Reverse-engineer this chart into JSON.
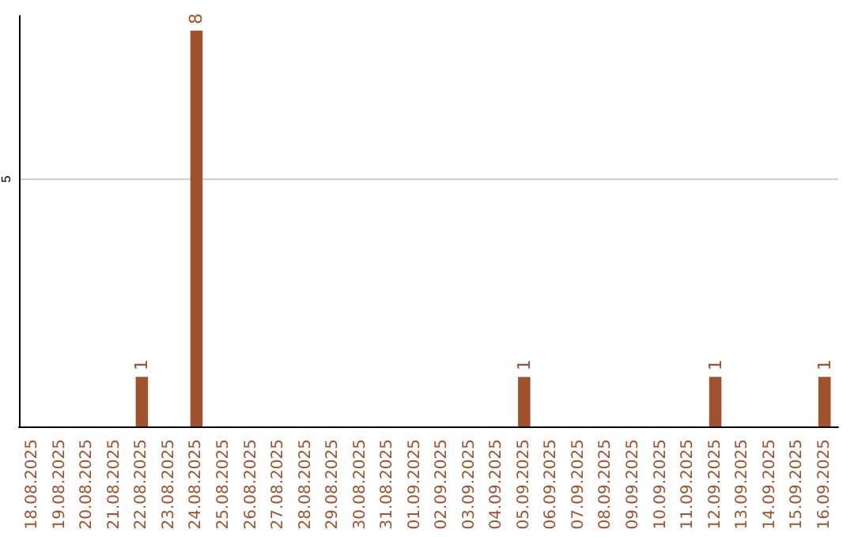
{
  "chart_data": {
    "type": "bar",
    "categories": [
      "18.08.2025",
      "19.08.2025",
      "20.08.2025",
      "21.08.2025",
      "22.08.2025",
      "23.08.2025",
      "24.08.2025",
      "25.08.2025",
      "26.08.2025",
      "27.08.2025",
      "28.08.2025",
      "29.08.2025",
      "30.08.2025",
      "31.08.2025",
      "01.09.2025",
      "02.09.2025",
      "03.09.2025",
      "04.09.2025",
      "05.09.2025",
      "06.09.2025",
      "07.09.2025",
      "08.09.2025",
      "09.09.2025",
      "10.09.2025",
      "11.09.2025",
      "12.09.2025",
      "13.09.2025",
      "14.09.2025",
      "15.09.2025",
      "16.09.2025"
    ],
    "values": [
      0,
      0,
      0,
      0,
      1,
      0,
      8,
      0,
      0,
      0,
      0,
      0,
      0,
      0,
      0,
      0,
      0,
      0,
      1,
      0,
      0,
      0,
      0,
      0,
      0,
      1,
      0,
      0,
      0,
      1
    ],
    "value_labels": [
      null,
      null,
      null,
      null,
      "1",
      null,
      "8",
      null,
      null,
      null,
      null,
      null,
      null,
      null,
      null,
      null,
      null,
      null,
      "1",
      null,
      null,
      null,
      null,
      null,
      null,
      "1",
      null,
      null,
      null,
      "1"
    ],
    "color": "#a0522d",
    "ylim": [
      0,
      8.3
    ],
    "yticks": [
      5
    ],
    "grid": "y"
  }
}
